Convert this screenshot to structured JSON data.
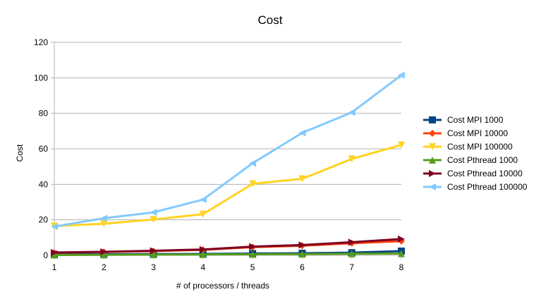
{
  "chart_data": {
    "type": "line",
    "title": "Cost",
    "xlabel": "# of processors / threads",
    "ylabel": "Cost",
    "x": [
      1,
      2,
      3,
      4,
      5,
      6,
      7,
      8
    ],
    "ylim": [
      0,
      120
    ],
    "yticks": [
      0,
      20,
      40,
      60,
      80,
      100,
      120
    ],
    "grid": "horizontal",
    "legend_position": "right",
    "series": [
      {
        "name": "Cost MPI 1000",
        "color": "#004586",
        "marker": "square",
        "values": [
          0.6,
          0.6,
          0.7,
          0.8,
          1.0,
          1.2,
          1.5,
          2.4
        ]
      },
      {
        "name": "Cost MPI 10000",
        "color": "#ff420e",
        "marker": "diamond",
        "values": [
          1.5,
          1.9,
          2.4,
          3.1,
          4.6,
          5.4,
          6.8,
          8.0
        ]
      },
      {
        "name": "Cost MPI 100000",
        "color": "#ffd320",
        "marker": "triangle-down",
        "values": [
          16.5,
          17.8,
          20.2,
          23.2,
          40.3,
          43.1,
          54.3,
          62.2
        ]
      },
      {
        "name": "Cost Pthread 1000",
        "color": "#579d1c",
        "marker": "triangle-up",
        "values": [
          0.2,
          0.3,
          0.4,
          0.5,
          0.6,
          0.7,
          0.9,
          1.0
        ]
      },
      {
        "name": "Cost Pthread 10000",
        "color": "#7e0021",
        "marker": "triangle-right",
        "values": [
          1.6,
          2.0,
          2.6,
          3.3,
          4.9,
          5.8,
          7.4,
          9.2
        ]
      },
      {
        "name": "Cost Pthread 100000",
        "color": "#83caff",
        "marker": "triangle-left",
        "values": [
          16.2,
          20.9,
          24.2,
          31.4,
          51.9,
          69.0,
          80.5,
          101.5
        ]
      }
    ]
  }
}
